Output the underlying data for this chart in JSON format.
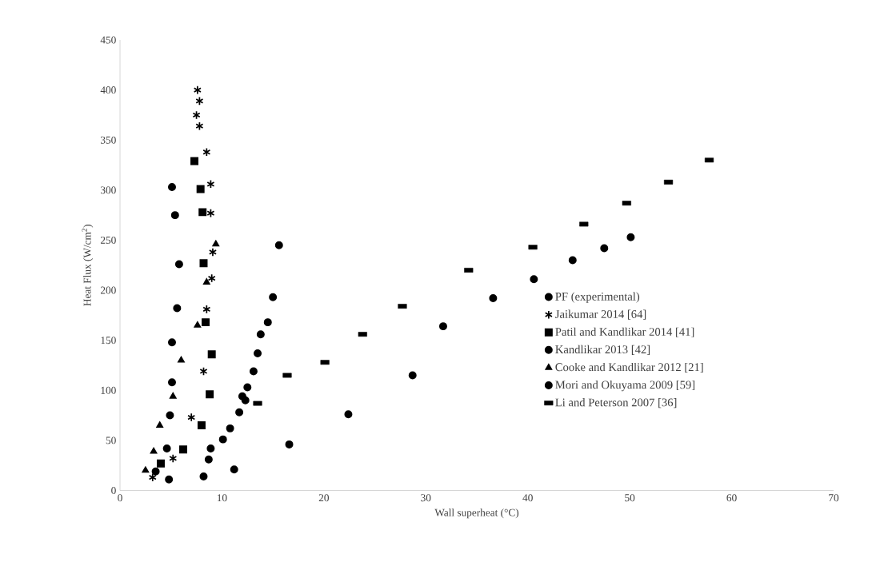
{
  "chart_data": {
    "type": "scatter",
    "xlabel": "Wall superheat (°C)",
    "ylabel": "Heat Flux (W/cm$^{2}$)",
    "xlim": [
      0,
      70
    ],
    "xticks": [
      0,
      10,
      20,
      30,
      40,
      50,
      60,
      70
    ],
    "ylim": [
      0,
      450
    ],
    "yticks": [
      0,
      50,
      100,
      150,
      200,
      250,
      300,
      350,
      400,
      450
    ],
    "grid": false,
    "legend": "right",
    "series": [
      {
        "name": "PF (experimental)",
        "color": "#000000",
        "marker": "circle",
        "x": [
          15.6,
          15.0,
          14.5,
          13.8,
          13.5,
          13.1,
          12.5,
          12.0,
          12.3,
          11.7,
          10.8,
          10.1,
          8.9,
          8.7,
          8.2
        ],
        "values": [
          245,
          193,
          168,
          156,
          137,
          119,
          103,
          94,
          90,
          78,
          62,
          51,
          42,
          31,
          14
        ]
      },
      {
        "name": "Jaikumar 2014 [64]",
        "color": "#000000",
        "marker": "cross",
        "x": [
          7.6,
          7.8,
          7.5,
          7.8,
          8.5,
          8.9,
          8.9,
          9.1,
          9.0,
          8.5,
          8.2,
          7.0,
          5.2,
          3.2
        ],
        "values": [
          400,
          389,
          375,
          364,
          338,
          306,
          277,
          238,
          212,
          181,
          119,
          73,
          32,
          13
        ]
      },
      {
        "name": "Patil and Kandlikar 2014  [41]",
        "color": "#000000",
        "marker": "square",
        "x": [
          7.3,
          7.9,
          8.1,
          8.2,
          8.4,
          9.0,
          8.8,
          8.0,
          6.2,
          4.0
        ],
        "values": [
          329,
          301,
          278,
          227,
          168,
          136,
          96,
          65,
          41,
          27
        ]
      },
      {
        "name": "Kandlikar 2013 [42]",
        "color": "#000000",
        "marker": "circle",
        "x": [
          5.1,
          5.4,
          5.8,
          5.6,
          5.1,
          5.1,
          4.9,
          4.6,
          3.5,
          4.8
        ],
        "values": [
          303,
          275,
          226,
          182,
          148,
          108,
          75,
          42,
          19,
          11
        ]
      },
      {
        "name": "Cooke and Kandlikar 2012 [21]",
        "color": "#000000",
        "marker": "triangle",
        "x": [
          9.4,
          8.5,
          7.6,
          6.0,
          5.2,
          3.9,
          3.3,
          2.5
        ],
        "values": [
          246,
          208,
          165,
          130,
          94,
          65,
          39,
          20
        ]
      },
      {
        "name": "Mori and Okuyama 2009 [59]",
        "color": "#000000",
        "marker": "circle",
        "x": [
          11.2,
          16.6,
          22.4,
          28.7,
          31.7,
          36.6,
          40.6,
          44.4,
          47.5,
          50.1
        ],
        "values": [
          21,
          46,
          76,
          115,
          164,
          192,
          211,
          230,
          242,
          253
        ]
      },
      {
        "name": "Li and Peterson 2007 [36]",
        "color": "#000000",
        "x": [
          13.5,
          16.4,
          20.1,
          23.8,
          27.7,
          34.2,
          40.5,
          45.5,
          49.7,
          53.8,
          57.8
        ],
        "values": [
          87,
          115,
          128,
          156,
          184,
          220,
          243,
          266,
          287,
          308,
          330
        ]
      }
    ]
  }
}
